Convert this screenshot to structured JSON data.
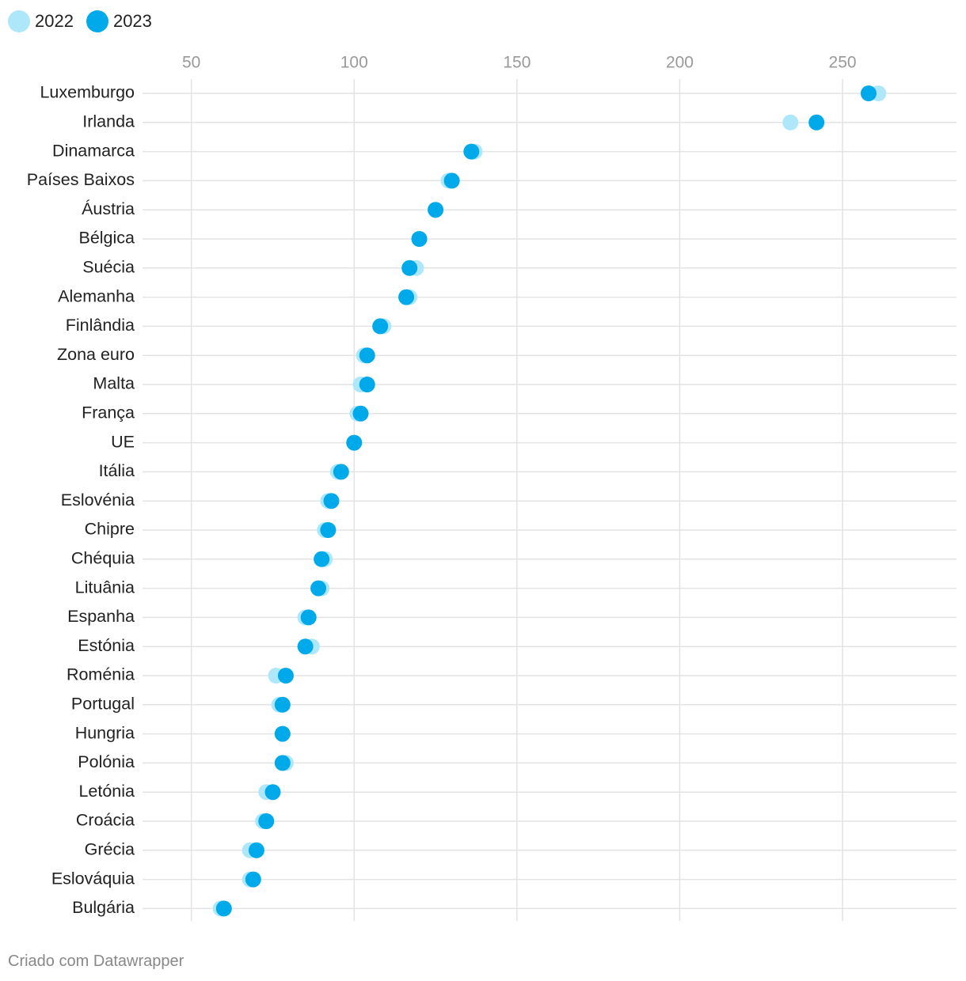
{
  "colors": {
    "series_2022": "#aee6fa",
    "series_2023": "#00a9ea",
    "grid": "#e3e3e3",
    "tick_text": "#999999",
    "label_text": "#222222"
  },
  "legend": [
    {
      "label": "2022"
    },
    {
      "label": "2023"
    }
  ],
  "chart_data": {
    "type": "dot-plot",
    "title": "",
    "xlabel": "",
    "ylabel": "",
    "xlim": [
      35,
      285
    ],
    "xticks": [
      50,
      100,
      150,
      200,
      250
    ],
    "grid": true,
    "legend_position": "top-left",
    "categories": [
      "Luxemburgo",
      "Irlanda",
      "Dinamarca",
      "Países Baixos",
      "Áustria",
      "Bélgica",
      "Suécia",
      "Alemanha",
      "Finlândia",
      "Zona euro",
      "Malta",
      "França",
      "UE",
      "Itália",
      "Eslovénia",
      "Chipre",
      "Chéquia",
      "Lituânia",
      "Espanha",
      "Estónia",
      "Roménia",
      "Portugal",
      "Hungria",
      "Polónia",
      "Letónia",
      "Croácia",
      "Grécia",
      "Eslováquia",
      "Bulgária"
    ],
    "series": [
      {
        "name": "2022",
        "values": [
          261,
          234,
          137,
          129,
          125,
          120,
          119,
          117,
          109,
          103,
          102,
          101,
          100,
          95,
          92,
          91,
          91,
          90,
          85,
          87,
          76,
          77,
          78,
          79,
          73,
          72,
          68,
          68,
          59
        ]
      },
      {
        "name": "2023",
        "values": [
          258,
          242,
          136,
          130,
          125,
          120,
          117,
          116,
          108,
          104,
          104,
          102,
          100,
          96,
          93,
          92,
          90,
          89,
          86,
          85,
          79,
          78,
          78,
          78,
          75,
          73,
          70,
          69,
          60
        ]
      }
    ]
  },
  "footer": {
    "credit": "Criado com Datawrapper"
  }
}
